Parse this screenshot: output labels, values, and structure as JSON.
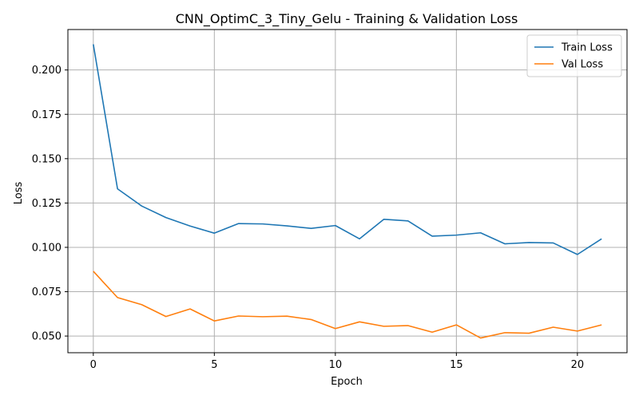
{
  "chart_data": {
    "type": "line",
    "title": "CNN_OptimC_3_Tiny_Gelu - Training & Validation Loss",
    "xlabel": "Epoch",
    "ylabel": "Loss",
    "x": [
      0,
      1,
      2,
      3,
      4,
      5,
      6,
      7,
      8,
      9,
      10,
      11,
      12,
      13,
      14,
      15,
      16,
      17,
      18,
      19,
      20,
      21
    ],
    "series": [
      {
        "name": "Train Loss",
        "color": "#1f77b4",
        "values": [
          0.2145,
          0.133,
          0.1233,
          0.1168,
          0.112,
          0.108,
          0.1134,
          0.1132,
          0.1121,
          0.1107,
          0.1123,
          0.1048,
          0.1158,
          0.1149,
          0.1063,
          0.1069,
          0.1082,
          0.102,
          0.1027,
          0.1025,
          0.096,
          0.1048
        ]
      },
      {
        "name": "Val Loss",
        "color": "#ff7f0e",
        "values": [
          0.0865,
          0.0717,
          0.0677,
          0.061,
          0.0653,
          0.0585,
          0.0613,
          0.0609,
          0.0612,
          0.0593,
          0.0542,
          0.058,
          0.0555,
          0.0559,
          0.0522,
          0.0563,
          0.0489,
          0.0519,
          0.0516,
          0.055,
          0.0528,
          0.0563
        ]
      }
    ],
    "xlim": [
      -1.05,
      22.05
    ],
    "ylim": [
      0.0406,
      0.2228
    ],
    "xticks": [
      0,
      5,
      10,
      15,
      20
    ],
    "xtick_labels": [
      "0",
      "5",
      "10",
      "15",
      "20"
    ],
    "yticks": [
      0.05,
      0.075,
      0.1,
      0.125,
      0.15,
      0.175,
      0.2
    ],
    "ytick_labels": [
      "0.050",
      "0.075",
      "0.100",
      "0.125",
      "0.150",
      "0.175",
      "0.200"
    ],
    "grid": true,
    "legend_position": "top-right"
  }
}
